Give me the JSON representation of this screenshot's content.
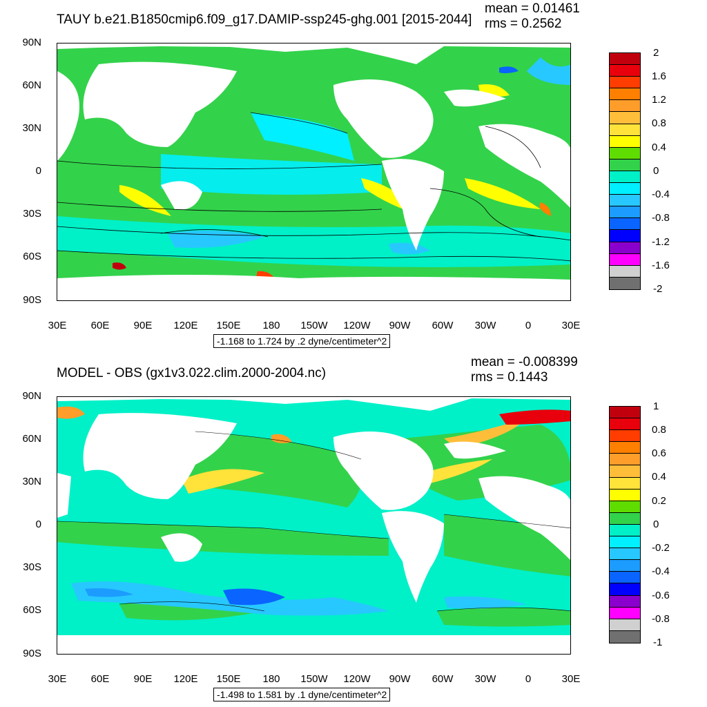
{
  "panels": [
    {
      "title": "TAUY b.e21.B1850cmip6.f09_g17.DAMIP-ssp245-ghg.001 [2015-2044]",
      "mean": "mean = 0.01461",
      "rms": "rms = 0.2562",
      "range_text": "-1.168 to 1.724 by .2 dyne/centimeter^2",
      "lat_labels": [
        "90N",
        "60N",
        "30N",
        "0",
        "30S",
        "60S",
        "90S"
      ],
      "lon_labels": [
        "30E",
        "60E",
        "90E",
        "120E",
        "150E",
        "180",
        "150W",
        "120W",
        "90W",
        "60W",
        "30W",
        "0",
        "30E"
      ],
      "colorbar_labels": [
        "2",
        "1.6",
        "1.2",
        "0.8",
        "0.4",
        "0",
        "-0.4",
        "-0.8",
        "-1.2",
        "-1.6",
        "-2"
      ],
      "colorbar_colors": [
        "#c1000e",
        "#e8000c",
        "#ff3d00",
        "#ff7f00",
        "#ff9d2a",
        "#ffbe3a",
        "#ffe23a",
        "#ffff00",
        "#5fdd00",
        "#33d24b",
        "#00f0c8",
        "#00f0ff",
        "#27c8ff",
        "#1c9cff",
        "#0a64ff",
        "#0000ff",
        "#8a00cc",
        "#ff00ff",
        "#d0d0d0",
        "#707070"
      ]
    },
    {
      "title": "MODEL - OBS (gx1v3.022.clim.2000-2004.nc)",
      "mean": "mean = -0.008399",
      "rms": "rms = 0.1443",
      "range_text": "-1.498 to 1.581 by .1 dyne/centimeter^2",
      "lat_labels": [
        "90N",
        "60N",
        "30N",
        "0",
        "30S",
        "60S",
        "90S"
      ],
      "lon_labels": [
        "30E",
        "60E",
        "90E",
        "120E",
        "150E",
        "180",
        "150W",
        "120W",
        "90W",
        "60W",
        "30W",
        "0",
        "30E"
      ],
      "colorbar_labels": [
        "1",
        "0.8",
        "0.6",
        "0.4",
        "0.2",
        "0",
        "-0.2",
        "-0.4",
        "-0.6",
        "-0.8",
        "-1"
      ],
      "colorbar_colors": [
        "#c1000e",
        "#e8000c",
        "#ff3d00",
        "#ff7f00",
        "#ff9d2a",
        "#ffbe3a",
        "#ffe23a",
        "#ffff00",
        "#5fdd00",
        "#33d24b",
        "#00f0c8",
        "#00f0ff",
        "#27c8ff",
        "#1c9cff",
        "#0a64ff",
        "#0000ff",
        "#8a00cc",
        "#ff00ff",
        "#d0d0d0",
        "#707070"
      ]
    }
  ]
}
